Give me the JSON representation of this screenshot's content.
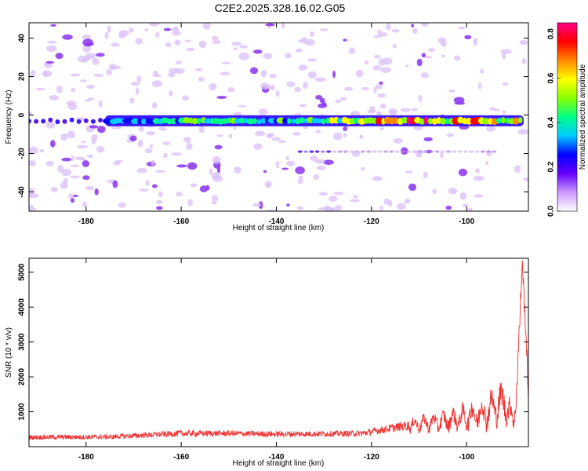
{
  "title": "C2E2.2025.328.16.02.G05",
  "chart_data": [
    {
      "type": "heatmap",
      "xlabel": "Height of straight line (km)",
      "ylabel": "Frequency (Hz)",
      "xlim": [
        -192,
        -87
      ],
      "ylim": [
        -50,
        48
      ],
      "xticks": [
        -180,
        -160,
        -140,
        -120,
        -100
      ],
      "yticks": [
        -40,
        -20,
        0,
        20,
        40
      ],
      "colorbar": {
        "label": "Normalized spectral amplitude",
        "range": [
          0,
          0.85
        ],
        "ticks": [
          0,
          0.2,
          0.4,
          0.6,
          0.8
        ],
        "colors": [
          "#ffffff",
          "#cc99ff",
          "#6600ff",
          "#0000ff",
          "#00ccff",
          "#00ff88",
          "#88ff00",
          "#ffff00",
          "#ff8800",
          "#ff0000",
          "#ff0088"
        ]
      },
      "band": {
        "frequency_hz": -3,
        "x_start": -176,
        "x_end": -88,
        "peak_amplitude_at": -112,
        "amplitude_samples": [
          {
            "x": -185,
            "amp": 0.18
          },
          {
            "x": -176,
            "amp": 0.32
          },
          {
            "x": -165,
            "amp": 0.42
          },
          {
            "x": -155,
            "amp": 0.5
          },
          {
            "x": -140,
            "amp": 0.46
          },
          {
            "x": -130,
            "amp": 0.52
          },
          {
            "x": -122,
            "amp": 0.58
          },
          {
            "x": -112,
            "amp": 0.82
          },
          {
            "x": -104,
            "amp": 0.7
          },
          {
            "x": -95,
            "amp": 0.72
          },
          {
            "x": -88,
            "amp": 0.6
          }
        ]
      },
      "secondary_line": {
        "frequency_hz": -19,
        "x_start": -135,
        "x_end": -93
      }
    },
    {
      "type": "line",
      "xlabel": "Height of straight line (km)",
      "ylabel": "SNR (10 * v/v)",
      "xlim": [
        -192,
        -87
      ],
      "ylim": [
        0,
        5400
      ],
      "xticks": [
        -180,
        -160,
        -140,
        -120,
        -100
      ],
      "yticks": [
        1000,
        2000,
        3000,
        4000,
        5000
      ],
      "series": [
        {
          "color": "#ee3333",
          "envelope": [
            {
              "x": -192,
              "mean": 270,
              "noise": 100
            },
            {
              "x": -175,
              "mean": 280,
              "noise": 100
            },
            {
              "x": -160,
              "mean": 380,
              "noise": 130
            },
            {
              "x": -150,
              "mean": 380,
              "noise": 120
            },
            {
              "x": -140,
              "mean": 360,
              "noise": 120
            },
            {
              "x": -130,
              "mean": 370,
              "noise": 120
            },
            {
              "x": -122,
              "mean": 380,
              "noise": 130
            },
            {
              "x": -115,
              "mean": 550,
              "noise": 180
            },
            {
              "x": -110,
              "mean": 650,
              "noise": 220
            },
            {
              "x": -105,
              "mean": 720,
              "noise": 280
            },
            {
              "x": -100,
              "mean": 850,
              "noise": 350
            },
            {
              "x": -96,
              "mean": 1000,
              "noise": 480
            },
            {
              "x": -92,
              "mean": 1300,
              "noise": 550
            },
            {
              "x": -90,
              "mean": 700,
              "noise": 300
            },
            {
              "x": -89,
              "mean": 3000,
              "noise": 700
            },
            {
              "x": -88.3,
              "mean": 5300,
              "noise": 200
            },
            {
              "x": -87.6,
              "mean": 3500,
              "noise": 500
            },
            {
              "x": -87,
              "mean": 1500,
              "noise": 300
            }
          ]
        }
      ]
    }
  ]
}
